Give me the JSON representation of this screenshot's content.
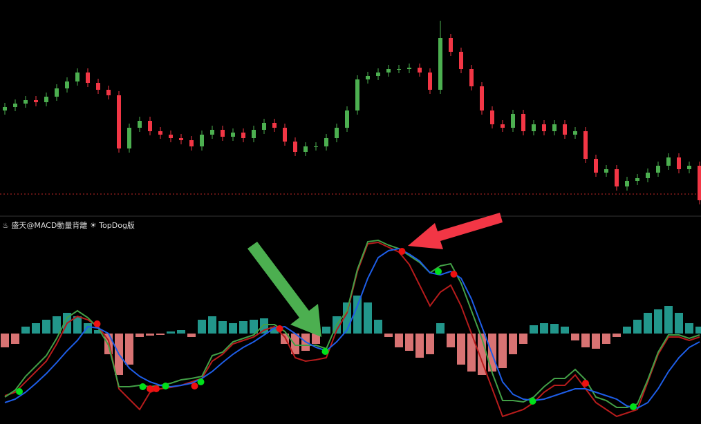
{
  "chart_data": [
    {
      "type": "candlestick",
      "open": [
        140,
        145,
        150,
        155,
        152,
        160,
        172,
        182,
        195,
        180,
        170,
        162,
        85,
        115,
        125,
        110,
        105,
        100,
        97,
        88,
        105,
        112,
        102,
        108,
        100,
        112,
        122,
        115,
        95,
        80,
        88,
        88,
        100,
        115,
        140,
        185,
        190,
        195,
        200,
        200,
        202,
        195,
        170,
        245,
        225,
        200,
        175,
        140,
        120,
        115,
        135,
        110,
        120,
        110,
        120,
        105,
        110,
        70,
        50,
        55,
        30,
        38,
        42,
        50,
        60,
        72,
        55,
        60
      ],
      "high": [
        151,
        156,
        161,
        161,
        166,
        178,
        188,
        201,
        201,
        186,
        176,
        168,
        121,
        131,
        131,
        116,
        111,
        106,
        103,
        111,
        118,
        118,
        114,
        114,
        118,
        128,
        128,
        121,
        101,
        94,
        94,
        106,
        121,
        146,
        191,
        196,
        201,
        206,
        206,
        208,
        208,
        201,
        270,
        251,
        231,
        206,
        181,
        146,
        126,
        141,
        141,
        126,
        126,
        126,
        126,
        116,
        116,
        76,
        61,
        61,
        44,
        48,
        56,
        66,
        78,
        78,
        66,
        66
      ],
      "low": [
        134,
        139,
        144,
        146,
        146,
        154,
        166,
        176,
        174,
        164,
        156,
        79,
        79,
        109,
        104,
        99,
        94,
        91,
        82,
        82,
        99,
        96,
        96,
        94,
        94,
        106,
        109,
        89,
        74,
        74,
        82,
        82,
        94,
        109,
        134,
        179,
        184,
        189,
        194,
        194,
        189,
        164,
        164,
        219,
        194,
        169,
        134,
        114,
        109,
        109,
        104,
        104,
        104,
        104,
        99,
        99,
        64,
        44,
        44,
        24,
        24,
        32,
        36,
        44,
        54,
        49,
        49,
        4
      ],
      "close": [
        145,
        150,
        155,
        152,
        160,
        172,
        182,
        195,
        180,
        170,
        162,
        85,
        115,
        125,
        110,
        105,
        100,
        97,
        88,
        105,
        112,
        102,
        108,
        100,
        112,
        122,
        115,
        95,
        80,
        88,
        88,
        100,
        115,
        140,
        185,
        190,
        195,
        200,
        200,
        202,
        195,
        170,
        245,
        225,
        200,
        175,
        140,
        120,
        115,
        135,
        110,
        120,
        110,
        120,
        105,
        110,
        70,
        50,
        55,
        30,
        38,
        42,
        50,
        60,
        72,
        55,
        60,
        10
      ],
      "up_color": "#4caf50",
      "down_color": "#f23645",
      "ylim": [
        0,
        290
      ],
      "price_line": 19,
      "price_line_color": "#c62828"
    },
    {
      "type": "macd",
      "title": "♨ 盛天@MACD動量背離 ☀ TopDog版",
      "ylim": [
        -130,
        140
      ],
      "histogram": {
        "up_color": "#26a69a",
        "down_color": "#f08080",
        "values": [
          -20,
          -15,
          10,
          15,
          20,
          25,
          30,
          25,
          15,
          5,
          -30,
          -60,
          -45,
          -5,
          -3,
          -2,
          3,
          5,
          -5,
          20,
          25,
          18,
          15,
          18,
          20,
          22,
          10,
          -15,
          -30,
          -25,
          -15,
          10,
          25,
          45,
          55,
          45,
          20,
          -5,
          -20,
          -25,
          -35,
          -30,
          15,
          -20,
          -45,
          -55,
          -60,
          -55,
          -50,
          -30,
          -15,
          12,
          15,
          14,
          10,
          -10,
          -20,
          -22,
          -15,
          -5,
          10,
          20,
          30,
          35,
          40,
          30,
          15,
          10
        ]
      },
      "series": [
        {
          "color": "#b71c1c",
          "values": [
            -90,
            -85,
            -70,
            -55,
            -40,
            -15,
            15,
            25,
            20,
            10,
            -10,
            -80,
            -95,
            -110,
            -85,
            -80,
            -78,
            -75,
            -70,
            -65,
            -40,
            -30,
            -15,
            -10,
            -5,
            5,
            10,
            -5,
            -35,
            -40,
            -38,
            -35,
            5,
            30,
            90,
            130,
            132,
            125,
            118,
            100,
            70,
            40,
            60,
            70,
            40,
            0,
            -40,
            -80,
            -120,
            -115,
            -110,
            -100,
            -85,
            -75,
            -75,
            -60,
            -80,
            -100,
            -110,
            -120,
            -115,
            -110,
            -70,
            -30,
            -5,
            -5,
            -10,
            -5
          ]
        },
        {
          "color": "#43a047",
          "values": [
            -92,
            -82,
            -62,
            -47,
            -32,
            -7,
            23,
            33,
            23,
            8,
            -17,
            -77,
            -77,
            -75,
            -77,
            -75,
            -72,
            -67,
            -65,
            -62,
            -32,
            -27,
            -12,
            -7,
            -2,
            13,
            13,
            3,
            -17,
            -17,
            -17,
            -22,
            13,
            33,
            93,
            133,
            135,
            128,
            123,
            113,
            103,
            88,
            98,
            101,
            73,
            33,
            -7,
            -57,
            -97,
            -97,
            -99,
            -92,
            -77,
            -65,
            -65,
            -52,
            -67,
            -92,
            -97,
            -107,
            -107,
            -102,
            -67,
            -27,
            -2,
            -2,
            -7,
            -2
          ]
        },
        {
          "color": "#1e5ee8",
          "values": [
            -100,
            -95,
            -85,
            -72,
            -58,
            -42,
            -25,
            -10,
            10,
            8,
            0,
            -30,
            -50,
            -62,
            -70,
            -75,
            -77,
            -75,
            -72,
            -65,
            -55,
            -42,
            -30,
            -20,
            -12,
            -2,
            8,
            10,
            0,
            -12,
            -20,
            -25,
            -12,
            5,
            40,
            80,
            110,
            120,
            123,
            115,
            105,
            88,
            85,
            90,
            80,
            50,
            10,
            -30,
            -70,
            -88,
            -95,
            -97,
            -95,
            -90,
            -85,
            -80,
            -80,
            -85,
            -90,
            -95,
            -105,
            -108,
            -100,
            -80,
            -55,
            -35,
            -20,
            -12
          ]
        }
      ],
      "signals": [
        {
          "color": "#00e01a",
          "x": [
            1.4,
            13.3,
            15.5,
            18.9,
            30.9,
            41.8,
            50.9,
            60.6
          ],
          "values": [
            -84,
            -77,
            -76,
            -70,
            -26,
            90,
            -98,
            -106
          ]
        },
        {
          "color": "#ee1111",
          "x": [
            8.9,
            14,
            14.6,
            18.3,
            26.5,
            38.3,
            43.3,
            56
          ],
          "values": [
            14,
            -80,
            -80,
            -76,
            7,
            119,
            86,
            -72
          ]
        }
      ]
    }
  ]
}
